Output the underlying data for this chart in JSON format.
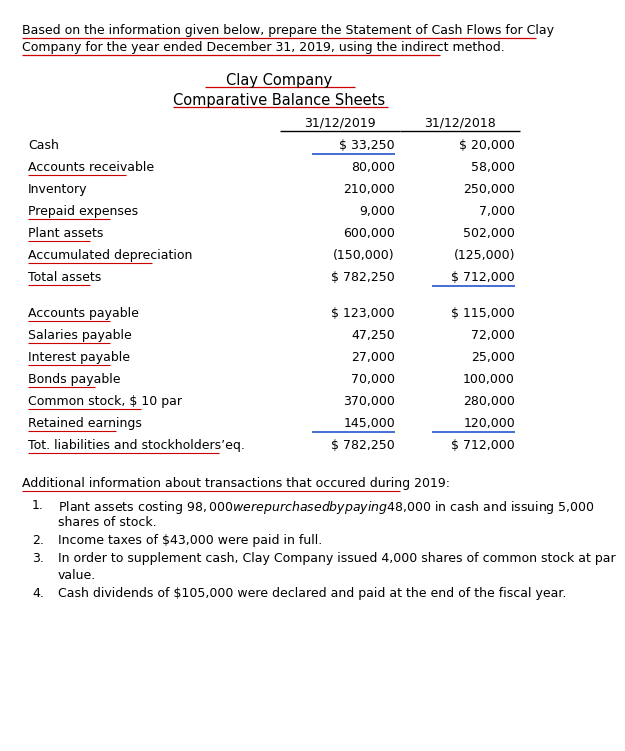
{
  "intro_line1": "Based on the information given below, prepare the Statement of Cash Flows for Clay",
  "intro_line2": "Company for the year ended December 31, 2019, using the indirect method.",
  "title1": "Clay Company",
  "title2": "Comparative Balance Sheets",
  "col1_header": "31/12/2019",
  "col2_header": "31/12/2018",
  "rows": [
    {
      "label": "Cash",
      "val1": "$ 33,250",
      "val2": "$ 20,000",
      "ul1": true,
      "ul2": false,
      "lul": false
    },
    {
      "label": "Accounts receivable",
      "val1": "80,000",
      "val2": "58,000",
      "ul1": false,
      "ul2": false,
      "lul": true
    },
    {
      "label": "Inventory",
      "val1": "210,000",
      "val2": "250,000",
      "ul1": false,
      "ul2": false,
      "lul": false
    },
    {
      "label": "Prepaid expenses",
      "val1": "9,000",
      "val2": "7,000",
      "ul1": false,
      "ul2": false,
      "lul": true
    },
    {
      "label": "Plant assets",
      "val1": "600,000",
      "val2": "502,000",
      "ul1": false,
      "ul2": false,
      "lul": true
    },
    {
      "label": "Accumulated depreciation",
      "val1": "(150,000)",
      "val2": "(125,000)",
      "ul1": false,
      "ul2": false,
      "lul": true
    },
    {
      "label": "Total assets",
      "val1": "$ 782,250",
      "val2": "$ 712,000",
      "ul1": false,
      "ul2": true,
      "lul": true
    },
    {
      "label": "",
      "val1": "",
      "val2": "",
      "ul1": false,
      "ul2": false,
      "lul": false
    },
    {
      "label": "Accounts payable",
      "val1": "$ 123,000",
      "val2": "$ 115,000",
      "ul1": false,
      "ul2": false,
      "lul": true
    },
    {
      "label": "Salaries payable",
      "val1": "47,250",
      "val2": "72,000",
      "ul1": false,
      "ul2": false,
      "lul": true
    },
    {
      "label": "Interest payable",
      "val1": "27,000",
      "val2": "25,000",
      "ul1": false,
      "ul2": false,
      "lul": true
    },
    {
      "label": "Bonds payable",
      "val1": "70,000",
      "val2": "100,000",
      "ul1": false,
      "ul2": false,
      "lul": true
    },
    {
      "label": "Common stock, $ 10 par",
      "val1": "370,000",
      "val2": "280,000",
      "ul1": false,
      "ul2": false,
      "lul": true
    },
    {
      "label": "Retained earnings",
      "val1": "145,000",
      "val2": "120,000",
      "ul1": true,
      "ul2": true,
      "lul": true
    },
    {
      "label": "Tot. liabilities and stockholders’eq.",
      "val1": "$ 782,250",
      "val2": "$ 712,000",
      "ul1": false,
      "ul2": false,
      "lul": true
    }
  ],
  "additional_title": "Additional information about transactions that occured during 2019:",
  "additional_items": [
    {
      "num": "1.",
      "line1": "Plant assets costing $98,000 were purchased by paying $48,000 in cash and issuing 5,000",
      "line2": "shares of stock."
    },
    {
      "num": "2.",
      "line1": "Income taxes of $43,000 were paid in full.",
      "line2": ""
    },
    {
      "num": "3.",
      "line1": "In order to supplement cash, Clay Company issued 4,000 shares of common stock at par",
      "line2": "value."
    },
    {
      "num": "4.",
      "line1": "Cash dividends of $105,000 were declared and paid at the end of the fiscal year.",
      "line2": ""
    }
  ],
  "bg_color": "#ffffff",
  "text_color": "#000000",
  "red_color": "#cc0000",
  "blue_color": "#2255cc"
}
